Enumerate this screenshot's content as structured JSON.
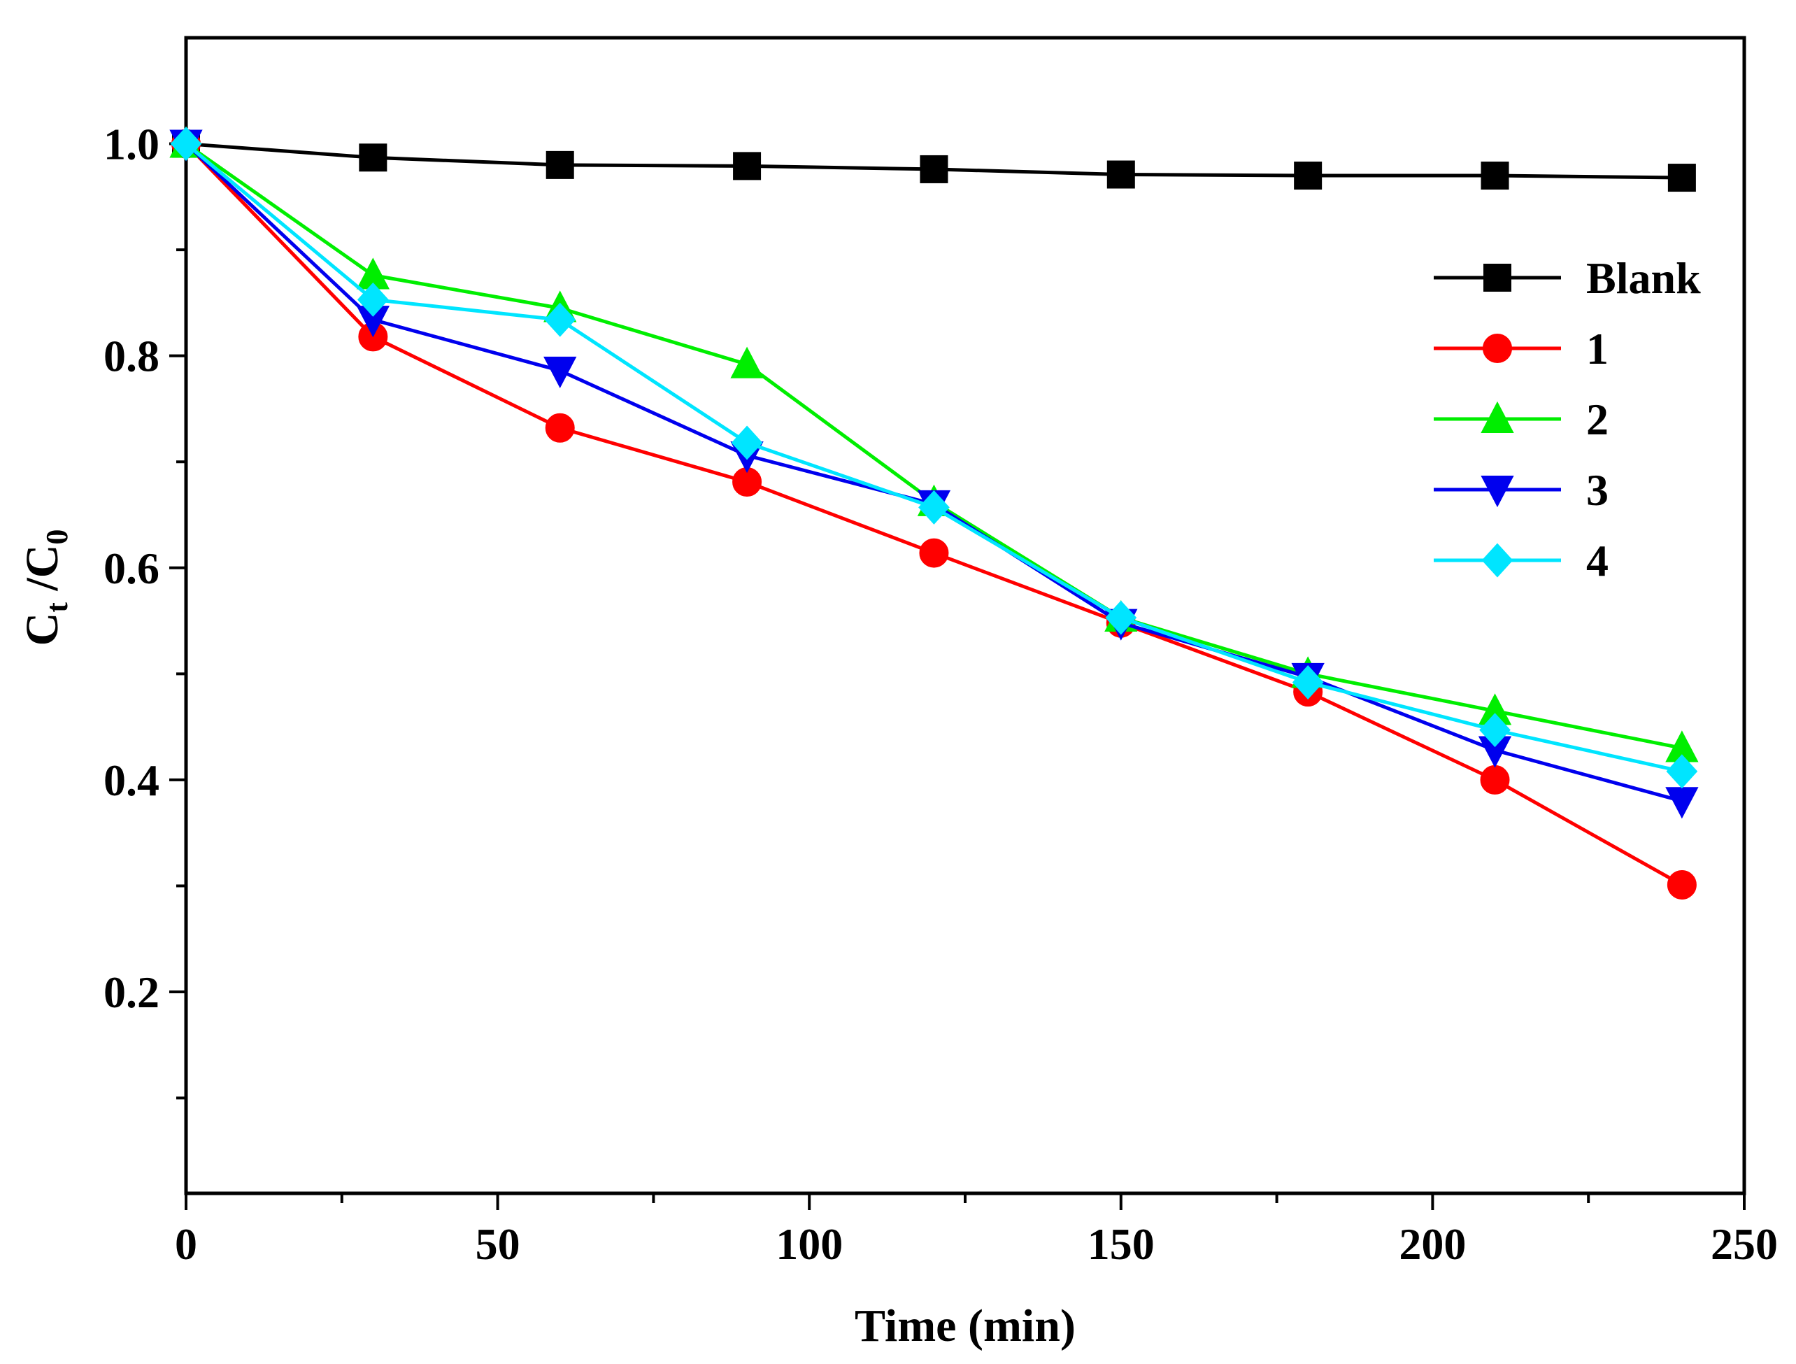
{
  "chart_data": {
    "type": "line",
    "x": [
      0,
      30,
      60,
      90,
      120,
      150,
      180,
      210,
      240
    ],
    "series": [
      {
        "name": "Blank",
        "color": "#000000",
        "marker": "square",
        "values": [
          1.0,
          0.987,
          0.98,
          0.979,
          0.976,
          0.971,
          0.97,
          0.97,
          0.968
        ]
      },
      {
        "name": "1",
        "color": "#ff0000",
        "marker": "circle",
        "values": [
          1.0,
          0.818,
          0.732,
          0.681,
          0.614,
          0.548,
          0.483,
          0.4,
          0.301
        ]
      },
      {
        "name": "2",
        "color": "#00ee00",
        "marker": "triangle-up",
        "values": [
          1.0,
          0.876,
          0.845,
          0.792,
          0.662,
          0.553,
          0.5,
          0.465,
          0.43
        ]
      },
      {
        "name": "3",
        "color": "#0000ee",
        "marker": "triangle-down",
        "values": [
          1.0,
          0.834,
          0.786,
          0.706,
          0.66,
          0.548,
          0.497,
          0.428,
          0.38
        ]
      },
      {
        "name": "4",
        "color": "#00e5ff",
        "marker": "diamond",
        "values": [
          1.0,
          0.853,
          0.834,
          0.718,
          0.657,
          0.553,
          0.492,
          0.447,
          0.408
        ]
      }
    ],
    "xlabel": "Time (min)",
    "ylabel": {
      "main": "C",
      "sub1": "t",
      "slash": " /C",
      "sub2": "0"
    },
    "xlim": [
      0,
      250
    ],
    "ylim": [
      0.01,
      1.1
    ],
    "xticks": [
      "0",
      "50",
      "100",
      "150",
      "200",
      "250"
    ],
    "yticks": [
      "0.2",
      "0.4",
      "0.6",
      "0.8",
      "1.0"
    ],
    "legend": "right"
  }
}
